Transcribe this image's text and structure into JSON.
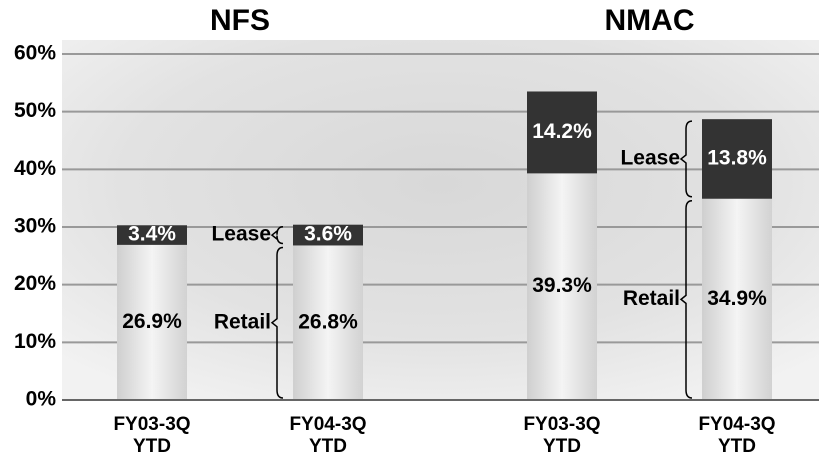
{
  "chart_data": {
    "type": "stacked-bar",
    "groups": [
      {
        "name": "NFS",
        "categories": [
          0,
          1
        ]
      },
      {
        "name": "NMAC",
        "categories": [
          2,
          3
        ]
      }
    ],
    "categories": [
      "FY03-3Q\nYTD",
      "FY04-3Q\nYTD",
      "FY03-3Q\nYTD",
      "FY04-3Q\nYTD"
    ],
    "series": [
      {
        "name": "Retail",
        "color": "#e6e6e6",
        "values": [
          26.9,
          26.8,
          39.3,
          34.9
        ],
        "value_labels": [
          "26.9%",
          "26.8%",
          "39.3%",
          "34.9%"
        ]
      },
      {
        "name": "Lease",
        "color": "#333333",
        "values": [
          3.4,
          3.6,
          14.2,
          13.8
        ],
        "value_labels": [
          "3.4%",
          "3.6%",
          "14.2%",
          "13.8%"
        ]
      }
    ],
    "ylim": [
      0,
      60
    ],
    "yticks": [
      {
        "value": 0,
        "label": "0%"
      },
      {
        "value": 10,
        "label": "10%"
      },
      {
        "value": 20,
        "label": "20%"
      },
      {
        "value": 30,
        "label": "30%"
      },
      {
        "value": 40,
        "label": "40%"
      },
      {
        "value": 50,
        "label": "50%"
      },
      {
        "value": 60,
        "label": "60%"
      }
    ],
    "grid": true
  }
}
